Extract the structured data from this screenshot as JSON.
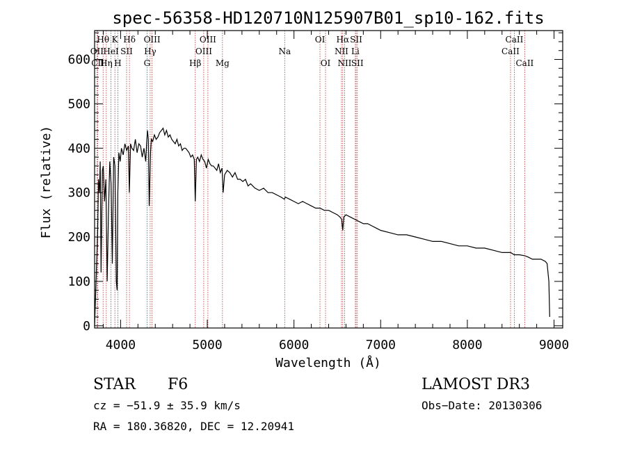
{
  "chart_data": {
    "type": "line",
    "title": "spec-56358-HD120710N125907B01_sp10-162.fits",
    "xlabel": "Wavelength (Å)",
    "ylabel": "Flux (relative)",
    "xlim": [
      3700,
      9100
    ],
    "ylim": [
      -5,
      665
    ],
    "x_ticks": [
      4000,
      5000,
      6000,
      7000,
      8000,
      9000
    ],
    "y_ticks": [
      0,
      100,
      200,
      300,
      400,
      500,
      600
    ],
    "grid": false,
    "series": [
      {
        "name": "flux",
        "x": [
          3700,
          3720,
          3735,
          3745,
          3755,
          3765,
          3775,
          3790,
          3800,
          3815,
          3830,
          3845,
          3860,
          3875,
          3890,
          3905,
          3920,
          3935,
          3950,
          3960,
          3968,
          3980,
          3995,
          4010,
          4030,
          4050,
          4070,
          4090,
          4101,
          4115,
          4130,
          4150,
          4170,
          4190,
          4210,
          4230,
          4250,
          4270,
          4290,
          4300,
          4310,
          4320,
          4330,
          4340,
          4345,
          4355,
          4370,
          4390,
          4410,
          4430,
          4450,
          4470,
          4490,
          4510,
          4530,
          4550,
          4570,
          4590,
          4610,
          4630,
          4650,
          4670,
          4690,
          4710,
          4730,
          4750,
          4770,
          4790,
          4810,
          4830,
          4850,
          4861,
          4875,
          4890,
          4910,
          4930,
          4950,
          4970,
          4990,
          5010,
          5030,
          5050,
          5070,
          5090,
          5110,
          5130,
          5150,
          5170,
          5183,
          5200,
          5230,
          5260,
          5290,
          5320,
          5350,
          5380,
          5410,
          5440,
          5470,
          5500,
          5550,
          5600,
          5650,
          5700,
          5750,
          5800,
          5850,
          5890,
          5900,
          5950,
          6000,
          6050,
          6100,
          6150,
          6200,
          6250,
          6300,
          6350,
          6400,
          6450,
          6500,
          6530,
          6550,
          6563,
          6575,
          6600,
          6650,
          6700,
          6750,
          6800,
          6850,
          6900,
          6950,
          7000,
          7100,
          7200,
          7300,
          7400,
          7500,
          7600,
          7700,
          7800,
          7900,
          8000,
          8100,
          8200,
          8300,
          8400,
          8500,
          8540,
          8600,
          8660,
          8700,
          8750,
          8800,
          8850,
          8900,
          8920,
          8940,
          8950
        ],
        "y": [
          0,
          120,
          210,
          330,
          300,
          370,
          120,
          350,
          360,
          280,
          330,
          100,
          250,
          370,
          320,
          140,
          380,
          360,
          100,
          80,
          300,
          390,
          370,
          400,
          385,
          410,
          395,
          405,
          300,
          410,
          400,
          395,
          420,
          390,
          410,
          405,
          380,
          400,
          370,
          410,
          440,
          420,
          270,
          350,
          390,
          420,
          415,
          430,
          420,
          425,
          435,
          440,
          445,
          430,
          440,
          425,
          430,
          420,
          415,
          410,
          420,
          405,
          410,
          395,
          400,
          400,
          395,
          390,
          380,
          385,
          375,
          280,
          375,
          380,
          370,
          385,
          375,
          370,
          355,
          375,
          365,
          360,
          360,
          355,
          350,
          365,
          345,
          355,
          300,
          340,
          350,
          345,
          335,
          345,
          330,
          330,
          325,
          330,
          315,
          320,
          310,
          305,
          310,
          300,
          300,
          295,
          290,
          285,
          290,
          285,
          280,
          275,
          280,
          275,
          270,
          265,
          265,
          260,
          260,
          255,
          250,
          245,
          240,
          215,
          245,
          250,
          245,
          240,
          235,
          230,
          230,
          225,
          220,
          215,
          210,
          205,
          205,
          200,
          195,
          190,
          190,
          185,
          180,
          180,
          175,
          175,
          170,
          165,
          165,
          160,
          160,
          158,
          155,
          150,
          150,
          150,
          145,
          140,
          100,
          20
        ]
      }
    ],
    "line_markers": [
      {
        "name": "Hθ",
        "wavelength": 3798,
        "row": 1
      },
      {
        "name": "OII",
        "wavelength": 3727,
        "row": 2
      },
      {
        "name": "CII",
        "wavelength": 3737,
        "row": 3
      },
      {
        "name": "Hη",
        "wavelength": 3835,
        "row": 3
      },
      {
        "name": "HeI",
        "wavelength": 3889,
        "row": 2
      },
      {
        "name": "K",
        "wavelength": 3934,
        "row": 1
      },
      {
        "name": "H",
        "wavelength": 3968,
        "row": 3
      },
      {
        "name": "SII",
        "wavelength": 4069,
        "row": 2
      },
      {
        "name": "Hδ",
        "wavelength": 4102,
        "row": 1
      },
      {
        "name": "OIII",
        "wavelength": 4363,
        "row": 1
      },
      {
        "name": "Hγ",
        "wavelength": 4341,
        "row": 2
      },
      {
        "name": "G",
        "wavelength": 4305,
        "row": 3
      },
      {
        "name": "Hβ",
        "wavelength": 4861,
        "row": 3
      },
      {
        "name": "OIII",
        "wavelength": 5007,
        "row": 1
      },
      {
        "name": "OIII",
        "wavelength": 4959,
        "row": 2
      },
      {
        "name": "Mg",
        "wavelength": 5175,
        "row": 3
      },
      {
        "name": "Na",
        "wavelength": 5893,
        "row": 2
      },
      {
        "name": "OI",
        "wavelength": 6300,
        "row": 1
      },
      {
        "name": "OI",
        "wavelength": 6364,
        "row": 3
      },
      {
        "name": "Hα",
        "wavelength": 6563,
        "row": 1
      },
      {
        "name": "NII",
        "wavelength": 6548,
        "row": 2
      },
      {
        "name": "NII",
        "wavelength": 6584,
        "row": 3
      },
      {
        "name": "SII",
        "wavelength": 6717,
        "row": 1
      },
      {
        "name": "Li",
        "wavelength": 6708,
        "row": 2
      },
      {
        "name": "SII",
        "wavelength": 6731,
        "row": 3
      },
      {
        "name": "CaII",
        "wavelength": 8542,
        "row": 1
      },
      {
        "name": "CaII",
        "wavelength": 8498,
        "row": 2
      },
      {
        "name": "CaII",
        "wavelength": 8662,
        "row": 3
      }
    ]
  },
  "info": {
    "object_class": "STAR",
    "subclass": "F6",
    "survey": "LAMOST DR3",
    "cz": "cz = −51.9 ± 35.9 km/s",
    "obs_date": "Obs−Date: 20130306",
    "coords": "RA = 180.36820, DEC =  12.20941"
  }
}
